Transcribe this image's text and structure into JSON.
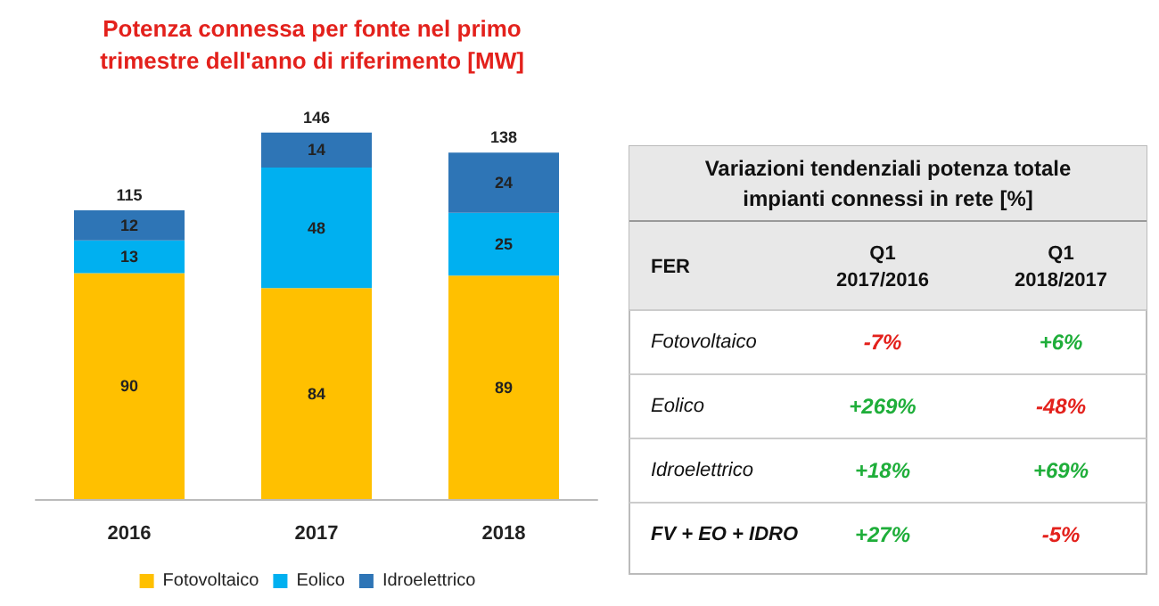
{
  "chart_data": [
    {
      "type": "bar",
      "title": "Potenza connessa per fonte nel primo\ntrimestre dell'anno di riferimento [MW]",
      "categories": [
        "2016",
        "2017",
        "2018"
      ],
      "stacked": true,
      "data_labels": true,
      "legend": "bottom",
      "totals": [
        "115",
        "146",
        "138"
      ],
      "series": [
        {
          "name": "Fotovoltaico",
          "color": "#ffc000",
          "values": [
            90,
            84,
            89
          ]
        },
        {
          "name": "Eolico",
          "color": "#00b0f0",
          "values": [
            13,
            48,
            25
          ]
        },
        {
          "name": "Idroelettrico",
          "color": "#2e75b6",
          "values": [
            12,
            14,
            24
          ]
        }
      ]
    },
    {
      "type": "other",
      "title": "Variazioni tendenziali potenza totale\nimpianti connessi in rete [%]",
      "xlabel": "FER",
      "categories": [
        "Fotovoltaico",
        "Eolico",
        "Idroelettrico",
        "FV + EO + IDRO"
      ],
      "series": [
        {
          "name": "Q1\n2017/2016",
          "values": [
            -7,
            269,
            18,
            27
          ],
          "value_labels": [
            "-7%",
            "+269%",
            "+18%",
            "+27%"
          ]
        },
        {
          "name": "Q1\n2018/2017",
          "values": [
            6,
            -48,
            69,
            -5
          ],
          "value_labels": [
            "+6%",
            "-48%",
            "+69%",
            "-5%"
          ]
        }
      ]
    }
  ]
}
